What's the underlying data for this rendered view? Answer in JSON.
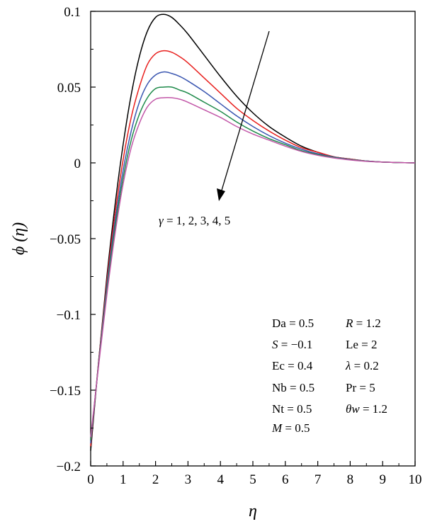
{
  "chart_data": {
    "type": "line",
    "title": "",
    "xlabel": "η",
    "ylabel": "ϕ (η)",
    "xlim": [
      0,
      10
    ],
    "ylim": [
      -0.2,
      0.1
    ],
    "grid": false,
    "x_ticks": [
      0,
      1,
      2,
      3,
      4,
      5,
      6,
      7,
      8,
      9,
      10
    ],
    "x_tick_labels": [
      "0",
      "1",
      "2",
      "3",
      "4",
      "5",
      "6",
      "7",
      "8",
      "9",
      "10"
    ],
    "y_ticks": [
      0.1,
      0.05,
      0,
      -0.05,
      -0.1,
      -0.15,
      -0.2
    ],
    "y_tick_labels": [
      "0.1",
      "0.05",
      "0",
      "−0.05",
      "−0.1",
      "−0.15",
      "−0.2"
    ],
    "x": [
      0,
      0.25,
      0.5,
      0.75,
      1.0,
      1.25,
      1.5,
      1.75,
      2.0,
      2.25,
      2.5,
      2.75,
      3.0,
      3.5,
      4.0,
      4.5,
      5.0,
      5.5,
      6.0,
      6.5,
      7.0,
      7.5,
      8.0,
      8.5,
      9.0,
      9.5,
      10.0
    ],
    "series": [
      {
        "color": "#000000",
        "values": [
          -0.19,
          -0.13,
          -0.075,
          -0.028,
          0.012,
          0.045,
          0.07,
          0.087,
          0.096,
          0.098,
          0.096,
          0.091,
          0.085,
          0.071,
          0.057,
          0.044,
          0.033,
          0.024,
          0.017,
          0.011,
          0.007,
          0.004,
          0.0025,
          0.0012,
          0.0005,
          0.0002,
          0.0
        ]
      },
      {
        "color": "#e8201e",
        "values": [
          -0.187,
          -0.13,
          -0.078,
          -0.034,
          0.002,
          0.03,
          0.05,
          0.065,
          0.072,
          0.074,
          0.073,
          0.07,
          0.066,
          0.056,
          0.046,
          0.036,
          0.028,
          0.021,
          0.015,
          0.01,
          0.007,
          0.004,
          0.0025,
          0.0012,
          0.0005,
          0.0002,
          0.0
        ]
      },
      {
        "color": "#3a56b0",
        "values": [
          -0.185,
          -0.131,
          -0.081,
          -0.039,
          -0.005,
          0.021,
          0.04,
          0.052,
          0.058,
          0.06,
          0.059,
          0.057,
          0.054,
          0.047,
          0.039,
          0.031,
          0.024,
          0.018,
          0.013,
          0.009,
          0.006,
          0.0038,
          0.0023,
          0.0012,
          0.0005,
          0.0002,
          0.0
        ]
      },
      {
        "color": "#1e8a4a",
        "values": [
          -0.183,
          -0.132,
          -0.084,
          -0.043,
          -0.01,
          0.015,
          0.032,
          0.043,
          0.049,
          0.05,
          0.05,
          0.048,
          0.046,
          0.04,
          0.034,
          0.027,
          0.021,
          0.016,
          0.012,
          0.008,
          0.0055,
          0.0035,
          0.0021,
          0.0011,
          0.0005,
          0.0002,
          0.0
        ]
      },
      {
        "color": "#c257a8",
        "values": [
          -0.181,
          -0.133,
          -0.087,
          -0.047,
          -0.014,
          0.01,
          0.026,
          0.037,
          0.042,
          0.043,
          0.043,
          0.042,
          0.04,
          0.035,
          0.03,
          0.024,
          0.019,
          0.015,
          0.011,
          0.0075,
          0.005,
          0.0032,
          0.0019,
          0.001,
          0.0005,
          0.0002,
          0.0
        ]
      }
    ],
    "arrow_label": "γ = 1, 2, 3, 4, 5",
    "parameters": [
      [
        "Da = 0.5",
        "R = 1.2"
      ],
      [
        "S = −0.1",
        "Le = 2"
      ],
      [
        "Ec = 0.4",
        "λ = 0.2"
      ],
      [
        "Nb = 0.5",
        "Pr = 5"
      ],
      [
        "Nt = 0.5",
        "θw = 1.2"
      ],
      [
        "M = 0.5",
        ""
      ]
    ]
  }
}
